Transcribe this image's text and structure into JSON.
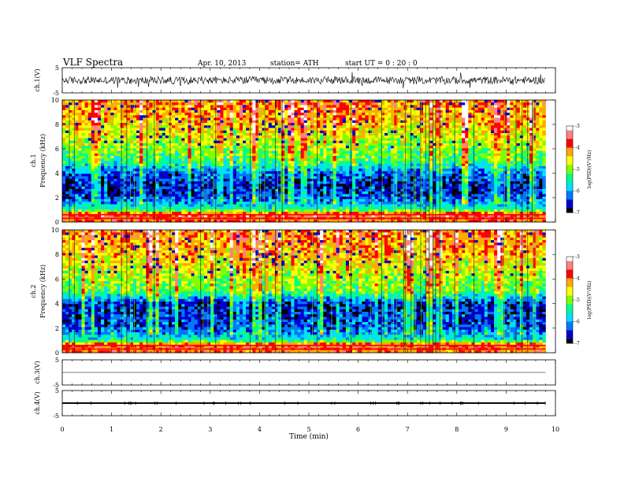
{
  "header": {
    "title": "VLF  Spectra",
    "date": "Apr. 10, 2013",
    "station": "station= ATH",
    "start": "start  UT  =   0  : 20 : 0"
  },
  "chart_data": [
    {
      "type": "line",
      "panel": "ch1-waveform",
      "ylabel": "ch.1(V)",
      "ylim": [
        -5,
        5
      ],
      "y_ticks": [
        "5",
        "-5"
      ],
      "xlim": [
        0,
        10
      ],
      "data_end_min": 9.8,
      "baseline": 0,
      "amplitude_approx": 1.5,
      "color": "#000000"
    },
    {
      "type": "heatmap",
      "panel": "ch1-spectrogram",
      "ylabel": "ch.1\nFrequency (kHz)",
      "ylim": [
        0,
        10
      ],
      "y_ticks": [
        "0",
        "2",
        "4",
        "6",
        "8",
        "10"
      ],
      "xlim": [
        0,
        10
      ],
      "data_end_min": 9.8,
      "colorbar": {
        "label": "log(PSD)(V²/Hz)",
        "range": [
          -7,
          -3
        ],
        "ticks": [
          "-3",
          "-4",
          "-5",
          "-6",
          "-7"
        ],
        "colors": [
          "#000000",
          "#0000cc",
          "#0077ff",
          "#00e0ff",
          "#00ff88",
          "#7fff00",
          "#ffff00",
          "#ffaa00",
          "#ff0000",
          "#ff8080",
          "#ffffff"
        ]
      },
      "log_psd_profile": [
        {
          "freq_khz": 0.3,
          "log_psd": -3.9
        },
        {
          "freq_khz": 0.6,
          "log_psd": -3.5
        },
        {
          "freq_khz": 1.0,
          "log_psd": -5.4
        },
        {
          "freq_khz": 2.0,
          "log_psd": -6.4
        },
        {
          "freq_khz": 3.0,
          "log_psd": -6.6
        },
        {
          "freq_khz": 4.0,
          "log_psd": -6.3
        },
        {
          "freq_khz": 5.0,
          "log_psd": -5.3
        },
        {
          "freq_khz": 6.0,
          "log_psd": -5.0
        },
        {
          "freq_khz": 7.0,
          "log_psd": -4.7
        },
        {
          "freq_khz": 8.0,
          "log_psd": -4.4
        },
        {
          "freq_khz": 9.0,
          "log_psd": -4.2
        },
        {
          "freq_khz": 10.0,
          "log_psd": -4.1
        }
      ]
    },
    {
      "type": "heatmap",
      "panel": "ch2-spectrogram",
      "ylabel": "ch.2\nFrequency (kHz)",
      "ylim": [
        0,
        10
      ],
      "y_ticks": [
        "0",
        "2",
        "4",
        "6",
        "8",
        "10"
      ],
      "xlim": [
        0,
        10
      ],
      "data_end_min": 9.8,
      "colorbar": {
        "label": "log(PSD)(V²/Hz)",
        "range": [
          -7,
          -3
        ],
        "ticks": [
          "-3",
          "-4",
          "-5",
          "-6",
          "-7"
        ],
        "colors": [
          "#000000",
          "#0000cc",
          "#0077ff",
          "#00e0ff",
          "#00ff88",
          "#7fff00",
          "#ffff00",
          "#ffaa00",
          "#ff0000",
          "#ff8080",
          "#ffffff"
        ]
      },
      "log_psd_profile": [
        {
          "freq_khz": 0.3,
          "log_psd": -4.0
        },
        {
          "freq_khz": 0.6,
          "log_psd": -3.6
        },
        {
          "freq_khz": 1.0,
          "log_psd": -5.5
        },
        {
          "freq_khz": 2.0,
          "log_psd": -6.4
        },
        {
          "freq_khz": 3.0,
          "log_psd": -6.5
        },
        {
          "freq_khz": 4.0,
          "log_psd": -6.6
        },
        {
          "freq_khz": 5.0,
          "log_psd": -5.2
        },
        {
          "freq_khz": 6.0,
          "log_psd": -5.0
        },
        {
          "freq_khz": 7.0,
          "log_psd": -4.7
        },
        {
          "freq_khz": 8.0,
          "log_psd": -4.4
        },
        {
          "freq_khz": 9.0,
          "log_psd": -4.2
        },
        {
          "freq_khz": 10.0,
          "log_psd": -4.1
        }
      ]
    },
    {
      "type": "line",
      "panel": "ch3-waveform",
      "ylabel": "ch.3(V)",
      "ylim": [
        -5,
        5
      ],
      "y_ticks": [
        "5",
        "-5"
      ],
      "xlim": [
        0,
        10
      ],
      "data_end_min": 9.8,
      "baseline": 0,
      "amplitude_approx": 0.05,
      "color": "#000000"
    },
    {
      "type": "line",
      "panel": "ch4-waveform",
      "ylabel": "ch.4(V)",
      "ylim": [
        -5,
        5
      ],
      "y_ticks": [
        "5",
        "-5"
      ],
      "xlim": [
        0,
        10
      ],
      "data_end_min": 9.8,
      "baseline": 0,
      "amplitude_approx": 0.3,
      "color": "#000000"
    }
  ],
  "x_axis": {
    "label": "Time  (min)",
    "ticks": [
      "0",
      "1",
      "2",
      "3",
      "4",
      "5",
      "6",
      "7",
      "8",
      "9",
      "10"
    ]
  }
}
